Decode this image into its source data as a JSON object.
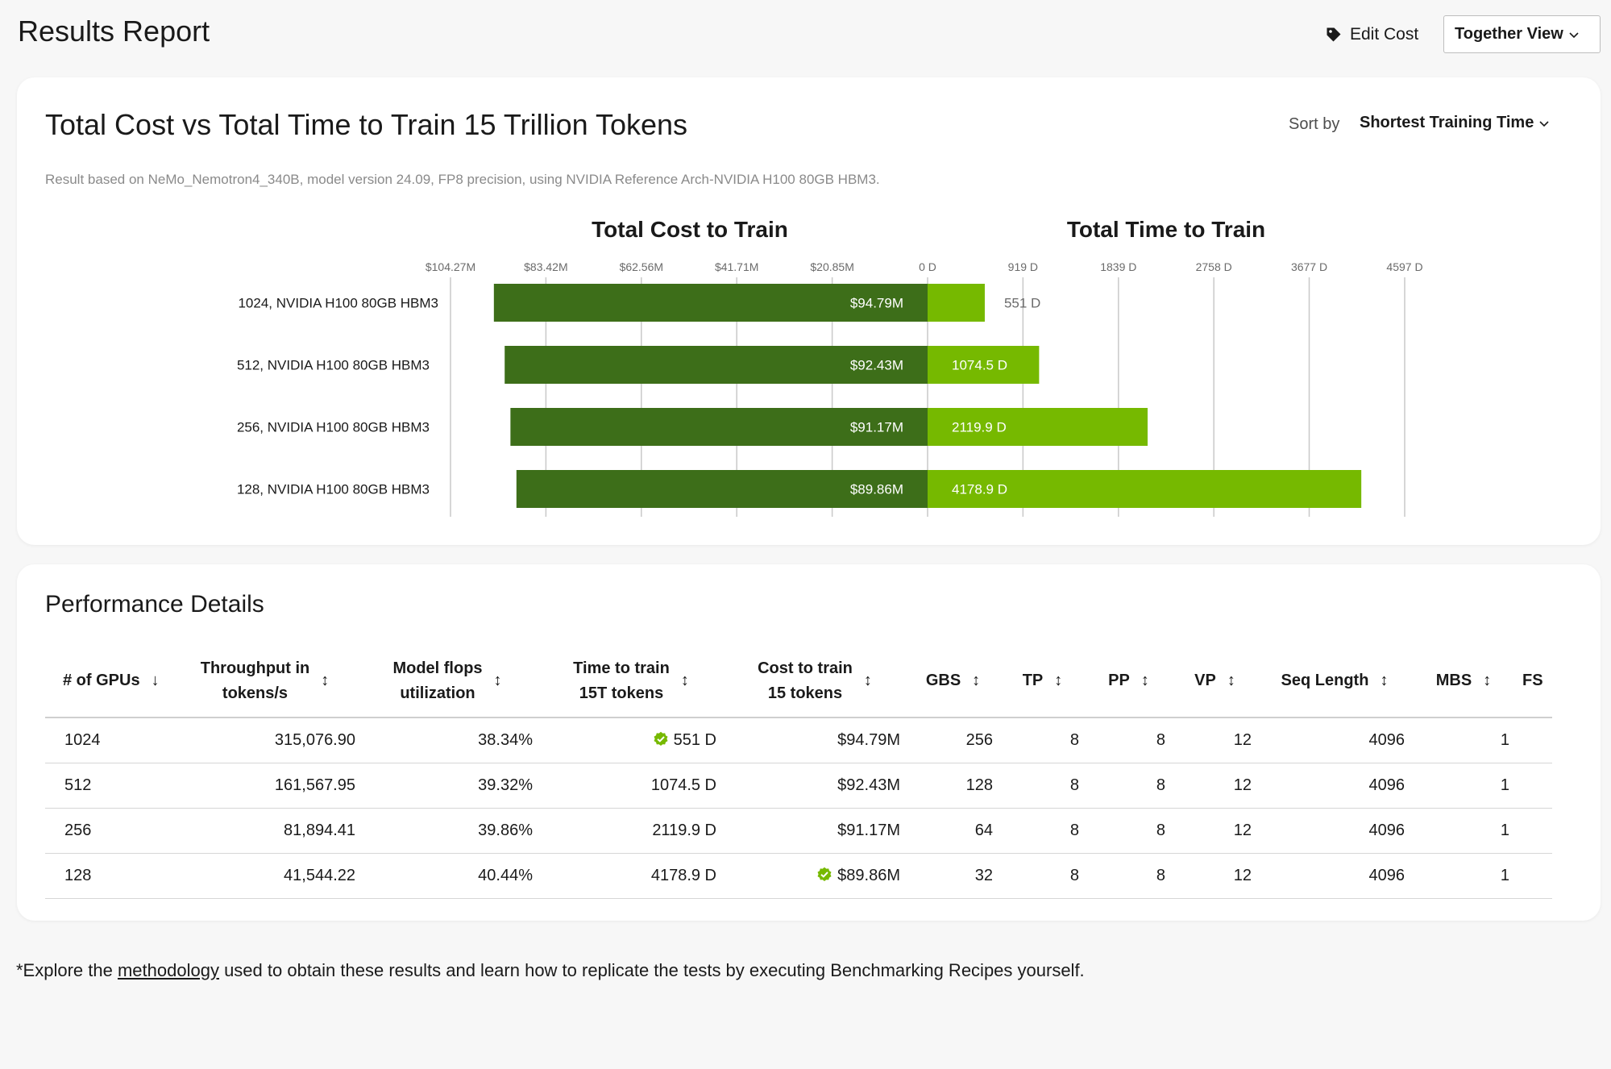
{
  "header": {
    "title": "Results Report",
    "edit_cost_label": "Edit Cost",
    "view_select_label": "Together View"
  },
  "chart_card": {
    "title": "Total Cost vs Total Time to Train 15 Trillion Tokens",
    "sort_by_label": "Sort by",
    "sort_value": "Shortest Training Time",
    "subtitle": "Result based on NeMo_Nemotron4_340B, model version 24.09, FP8 precision, using NVIDIA Reference Arch-NVIDIA H100 80GB HBM3."
  },
  "chart_data": {
    "type": "bar",
    "orientation": "horizontal",
    "layout": "diverging",
    "categories": [
      "1024, NVIDIA H100 80GB HBM3",
      "512, NVIDIA H100 80GB HBM3",
      "256, NVIDIA H100 80GB HBM3",
      "128, NVIDIA H100 80GB HBM3"
    ],
    "series": [
      {
        "name": "Total Cost to Train",
        "values": [
          94.79,
          92.43,
          91.17,
          89.86
        ],
        "value_labels": [
          "$94.79M",
          "$92.43M",
          "$91.17M",
          "$89.86M"
        ],
        "ticks": [
          "$104.27M",
          "$83.42M",
          "$62.56M",
          "$41.71M",
          "$20.85M"
        ],
        "tick_values": [
          104.27,
          83.42,
          62.56,
          41.71,
          20.85
        ],
        "xlim": [
          0,
          104.27
        ],
        "color": "#3d6e19"
      },
      {
        "name": "Total Time to Train",
        "values": [
          551,
          1074.5,
          2119.9,
          4178.9
        ],
        "value_labels": [
          "551 D",
          "1074.5 D",
          "2119.9 D",
          "4178.9 D"
        ],
        "ticks": [
          "0 D",
          "919 D",
          "1839 D",
          "2758 D",
          "3677 D",
          "4597 D"
        ],
        "tick_values": [
          0,
          919,
          1839,
          2758,
          3677,
          4597
        ],
        "xlim": [
          0,
          4597
        ],
        "color": "#76b900"
      }
    ],
    "grid": true
  },
  "performance": {
    "title": "Performance Details",
    "columns": [
      {
        "label": "# of GPUs",
        "sort_icon": "↓"
      },
      {
        "label": "Throughput in tokens/s",
        "sort_icon": "↕"
      },
      {
        "label": "Model flops utilization",
        "sort_icon": "↕"
      },
      {
        "label": "Time to train 15T tokens",
        "sort_icon": "↕"
      },
      {
        "label": "Cost to train 15 tokens",
        "sort_icon": "↕"
      },
      {
        "label": "GBS",
        "sort_icon": "↕"
      },
      {
        "label": "TP",
        "sort_icon": "↕"
      },
      {
        "label": "PP",
        "sort_icon": "↕"
      },
      {
        "label": "VP",
        "sort_icon": "↕"
      },
      {
        "label": "Seq Length",
        "sort_icon": "↕"
      },
      {
        "label": "MBS",
        "sort_icon": "↕"
      },
      {
        "label": "FS",
        "sort_icon": ""
      }
    ],
    "rows": [
      [
        "1024",
        "315,076.90",
        "38.34%",
        "551 D",
        "$94.79M",
        "256",
        "8",
        "8",
        "12",
        "4096",
        "1",
        ""
      ],
      [
        "512",
        "161,567.95",
        "39.32%",
        "1074.5 D",
        "$92.43M",
        "128",
        "8",
        "8",
        "12",
        "4096",
        "1",
        ""
      ],
      [
        "256",
        "81,894.41",
        "39.86%",
        "2119.9 D",
        "$91.17M",
        "64",
        "8",
        "8",
        "12",
        "4096",
        "1",
        ""
      ],
      [
        "128",
        "41,544.22",
        "40.44%",
        "4178.9 D",
        "$89.86M",
        "32",
        "8",
        "8",
        "12",
        "4096",
        "1",
        ""
      ]
    ],
    "best_badges": [
      {
        "row": 0,
        "col": 3,
        "icon": "verified-check-icon"
      },
      {
        "row": 3,
        "col": 4,
        "icon": "verified-check-icon"
      }
    ]
  },
  "footnote": {
    "prefix": "*Explore the ",
    "link_text": "methodology",
    "suffix": " used to obtain these results and learn how to replicate the tests by executing Benchmarking Recipes yourself."
  }
}
